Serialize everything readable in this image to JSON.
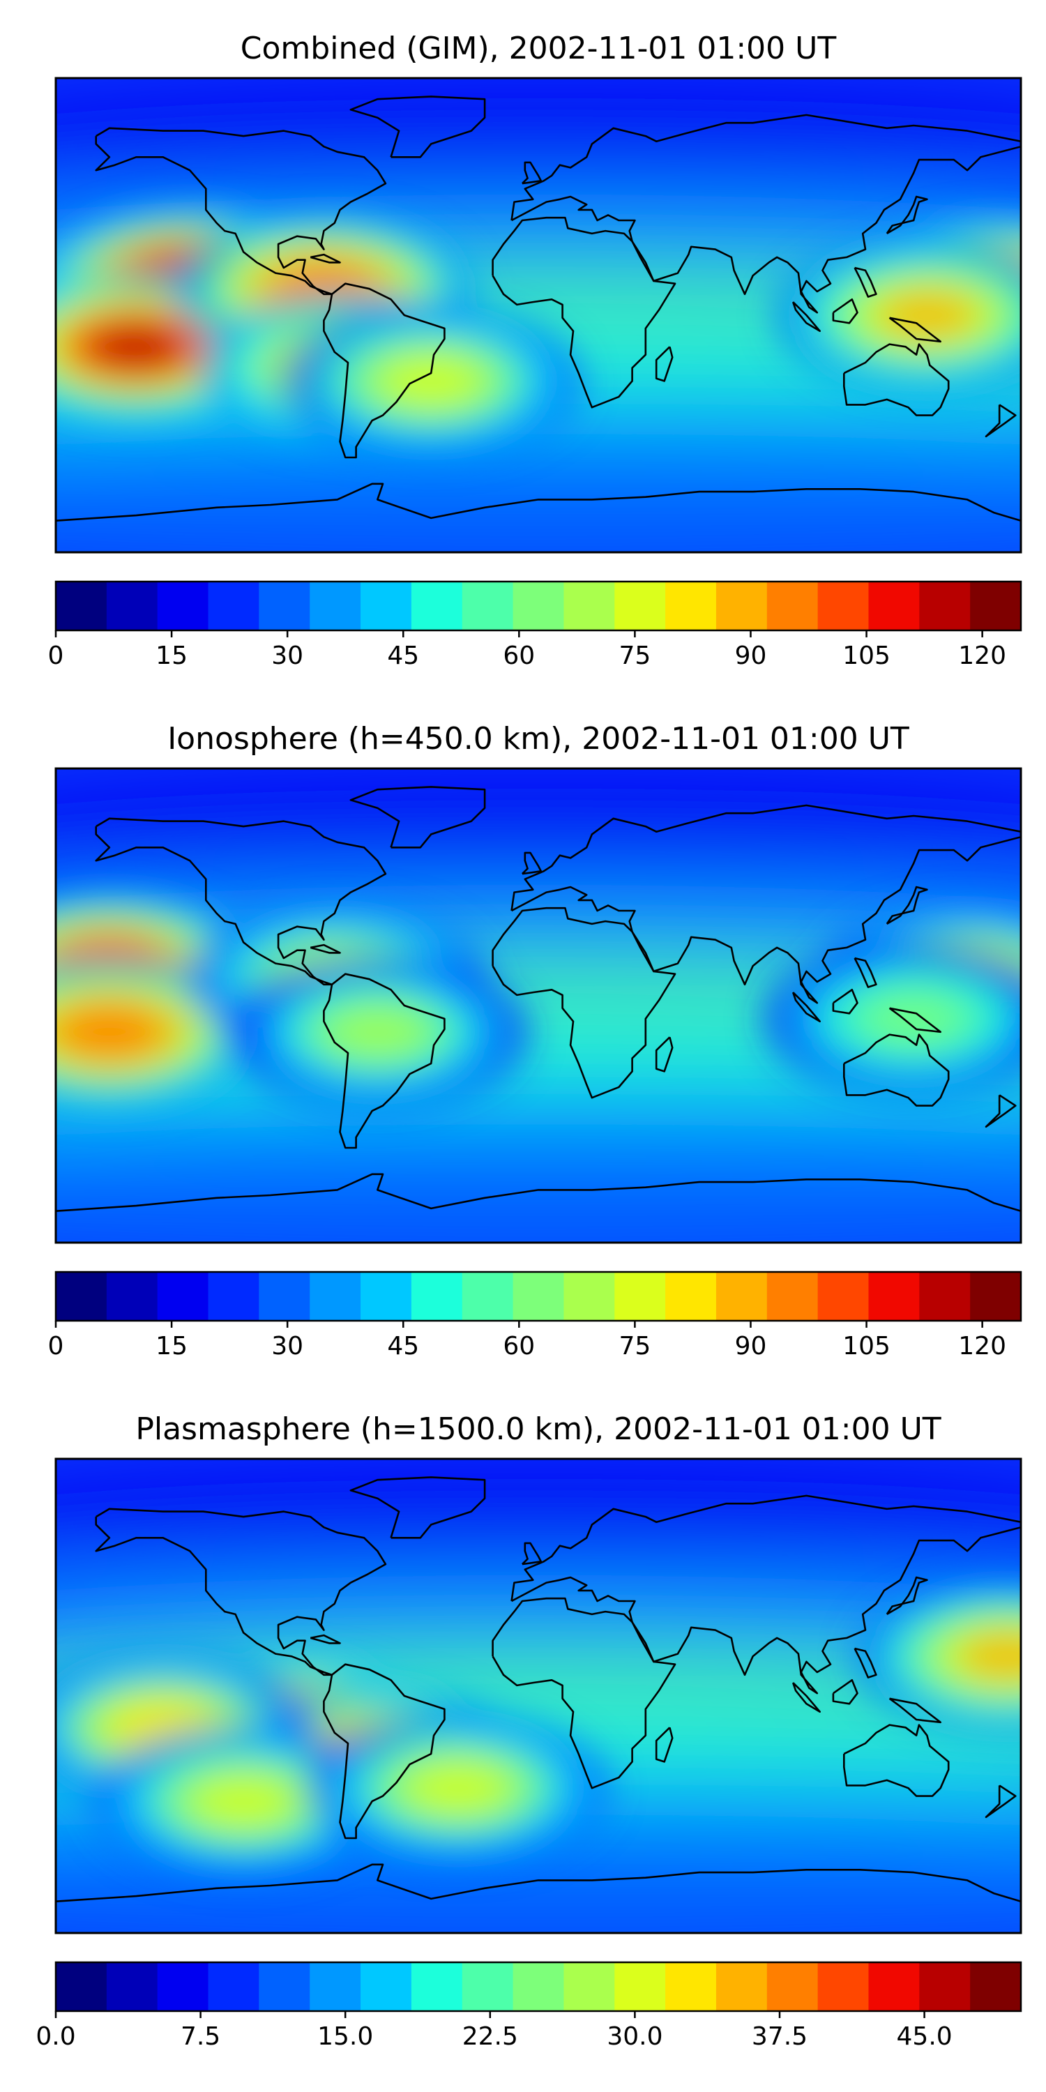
{
  "palette": [
    "#00007f",
    "#0000b8",
    "#0000f1",
    "#002aff",
    "#0062ff",
    "#0098ff",
    "#00c8ff",
    "#1cffdb",
    "#4dffaa",
    "#7dff7a",
    "#aaff4d",
    "#dbff1c",
    "#ffe600",
    "#ffb200",
    "#ff7f00",
    "#ff4700",
    "#f10800",
    "#b80000",
    "#7f0000"
  ],
  "panels": [
    {
      "title": "Combined (GIM), 2002-11-01 01:00 UT",
      "colorbar": {
        "min": 0,
        "max": 125,
        "ticks": [
          "0",
          "15",
          "30",
          "45",
          "60",
          "75",
          "90",
          "105",
          "120"
        ],
        "tick_values": [
          0,
          15,
          30,
          45,
          60,
          75,
          90,
          105,
          120
        ]
      },
      "hotspots": [
        {
          "lon": -130,
          "lat": 12,
          "level": 0.97
        },
        {
          "lon": -150,
          "lat": -12,
          "level": 0.92
        },
        {
          "lon": -80,
          "lat": 10,
          "level": 0.8
        },
        {
          "lon": -70,
          "lat": -20,
          "level": 0.75
        },
        {
          "lon": 172,
          "lat": 8,
          "level": 0.9
        },
        {
          "lon": 145,
          "lat": 0,
          "level": 0.7
        },
        {
          "lon": -40,
          "lat": -25,
          "level": 0.6
        }
      ]
    },
    {
      "title": "Ionosphere  (h=450.0 km), 2002-11-01 01:00 UT",
      "colorbar": {
        "min": 0,
        "max": 125,
        "ticks": [
          "0",
          "15",
          "30",
          "45",
          "60",
          "75",
          "90",
          "105",
          "120"
        ],
        "tick_values": [
          0,
          15,
          30,
          45,
          60,
          75,
          90,
          105,
          120
        ]
      },
      "hotspots": [
        {
          "lon": -160,
          "lat": 15,
          "level": 0.85
        },
        {
          "lon": -160,
          "lat": -10,
          "level": 0.8
        },
        {
          "lon": -75,
          "lat": 10,
          "level": 0.6
        },
        {
          "lon": -60,
          "lat": -10,
          "level": 0.55
        },
        {
          "lon": 160,
          "lat": 10,
          "level": 0.65
        },
        {
          "lon": 140,
          "lat": -5,
          "level": 0.5
        }
      ]
    },
    {
      "title": "Plasmasphere (h=1500.0 km), 2002-11-01 01:00 UT",
      "colorbar": {
        "min": 0,
        "max": 50,
        "ticks": [
          "0.0",
          "7.5",
          "15.0",
          "22.5",
          "30.0",
          "37.5",
          "45.0"
        ],
        "tick_values": [
          0,
          7.5,
          15,
          22.5,
          30,
          37.5,
          45
        ]
      },
      "hotspots": [
        {
          "lon": -95,
          "lat": -15,
          "level": 0.97
        },
        {
          "lon": -60,
          "lat": -25,
          "level": 0.85
        },
        {
          "lon": -140,
          "lat": -12,
          "level": 0.65
        },
        {
          "lon": -110,
          "lat": -40,
          "level": 0.6
        },
        {
          "lon": 175,
          "lat": 15,
          "level": 0.7
        },
        {
          "lon": -30,
          "lat": -35,
          "level": 0.6
        }
      ]
    }
  ]
}
